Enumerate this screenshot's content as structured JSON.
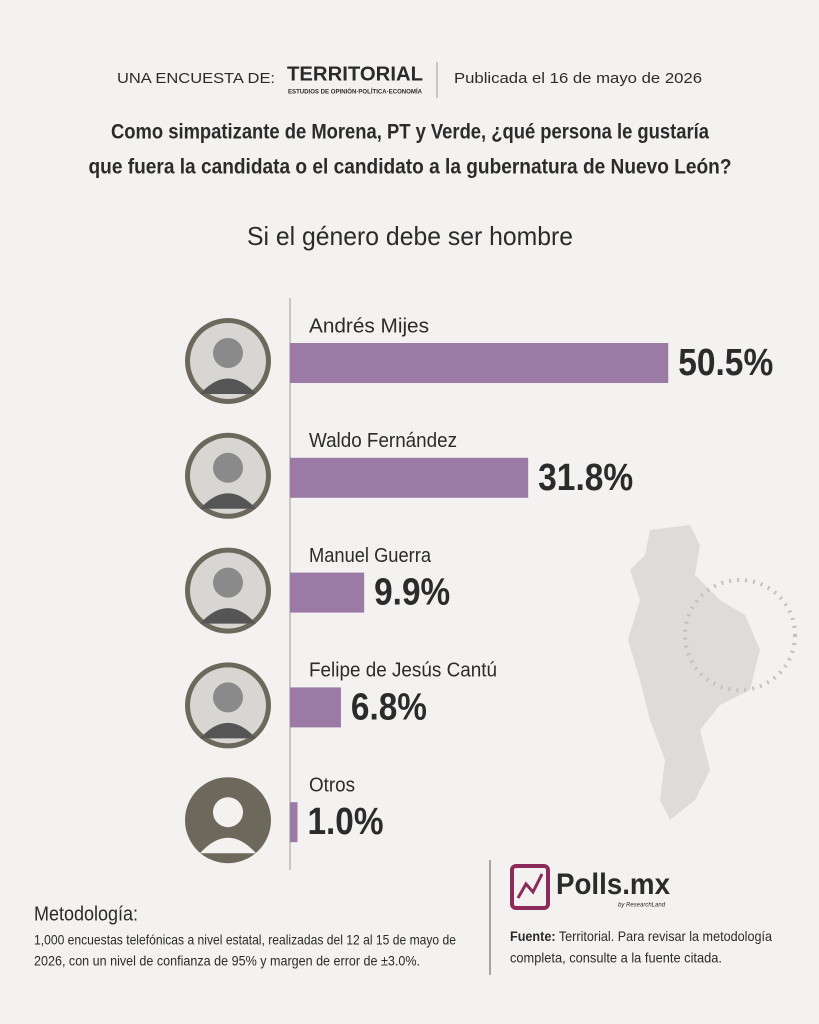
{
  "header": {
    "survey_by": "UNA ENCUESTA DE:",
    "pollster": "TERRITORIAL",
    "pollster_tagline": "ESTUDIOS DE OPINIÓN·POLÍTICA·ECONOMÍA",
    "published": "Publicada el 16 de mayo de 2026"
  },
  "chart_data": {
    "type": "bar",
    "orientation": "horizontal",
    "title": [
      "Como simpatizante de Morena, PT y Verde, ¿qué persona le gustaría",
      "que fuera la candidata o el candidato a la gubernatura de Nuevo León?"
    ],
    "subtitle": "Si el género debe ser hombre",
    "categories": [
      "Andrés Mijes",
      "Waldo Fernández",
      "Manuel Guerra",
      "Felipe de Jesús Cantú",
      "Otros"
    ],
    "values": [
      50.5,
      31.8,
      9.9,
      6.8,
      1.0
    ],
    "value_labels": [
      "50.5%",
      "31.8%",
      "9.9%",
      "6.8%",
      "1.0%"
    ],
    "color": "#9b7aa6",
    "xlim": [
      0,
      100
    ]
  },
  "footer": {
    "methodology_title": "Metodología:",
    "methodology_lines": [
      "1,000 encuestas telefónicas a nivel estatal, realizadas del 12 al 15 de mayo de",
      "2026, con un nivel de confianza de 95% y margen de error de ±3.0%."
    ],
    "brand": "Polls.mx",
    "brand_tagline": "by ResearchLand",
    "source_label": "Fuente:",
    "source_lines": [
      " Territorial. Para revisar la metodología",
      "completa, consulte a la fuente citada."
    ]
  }
}
